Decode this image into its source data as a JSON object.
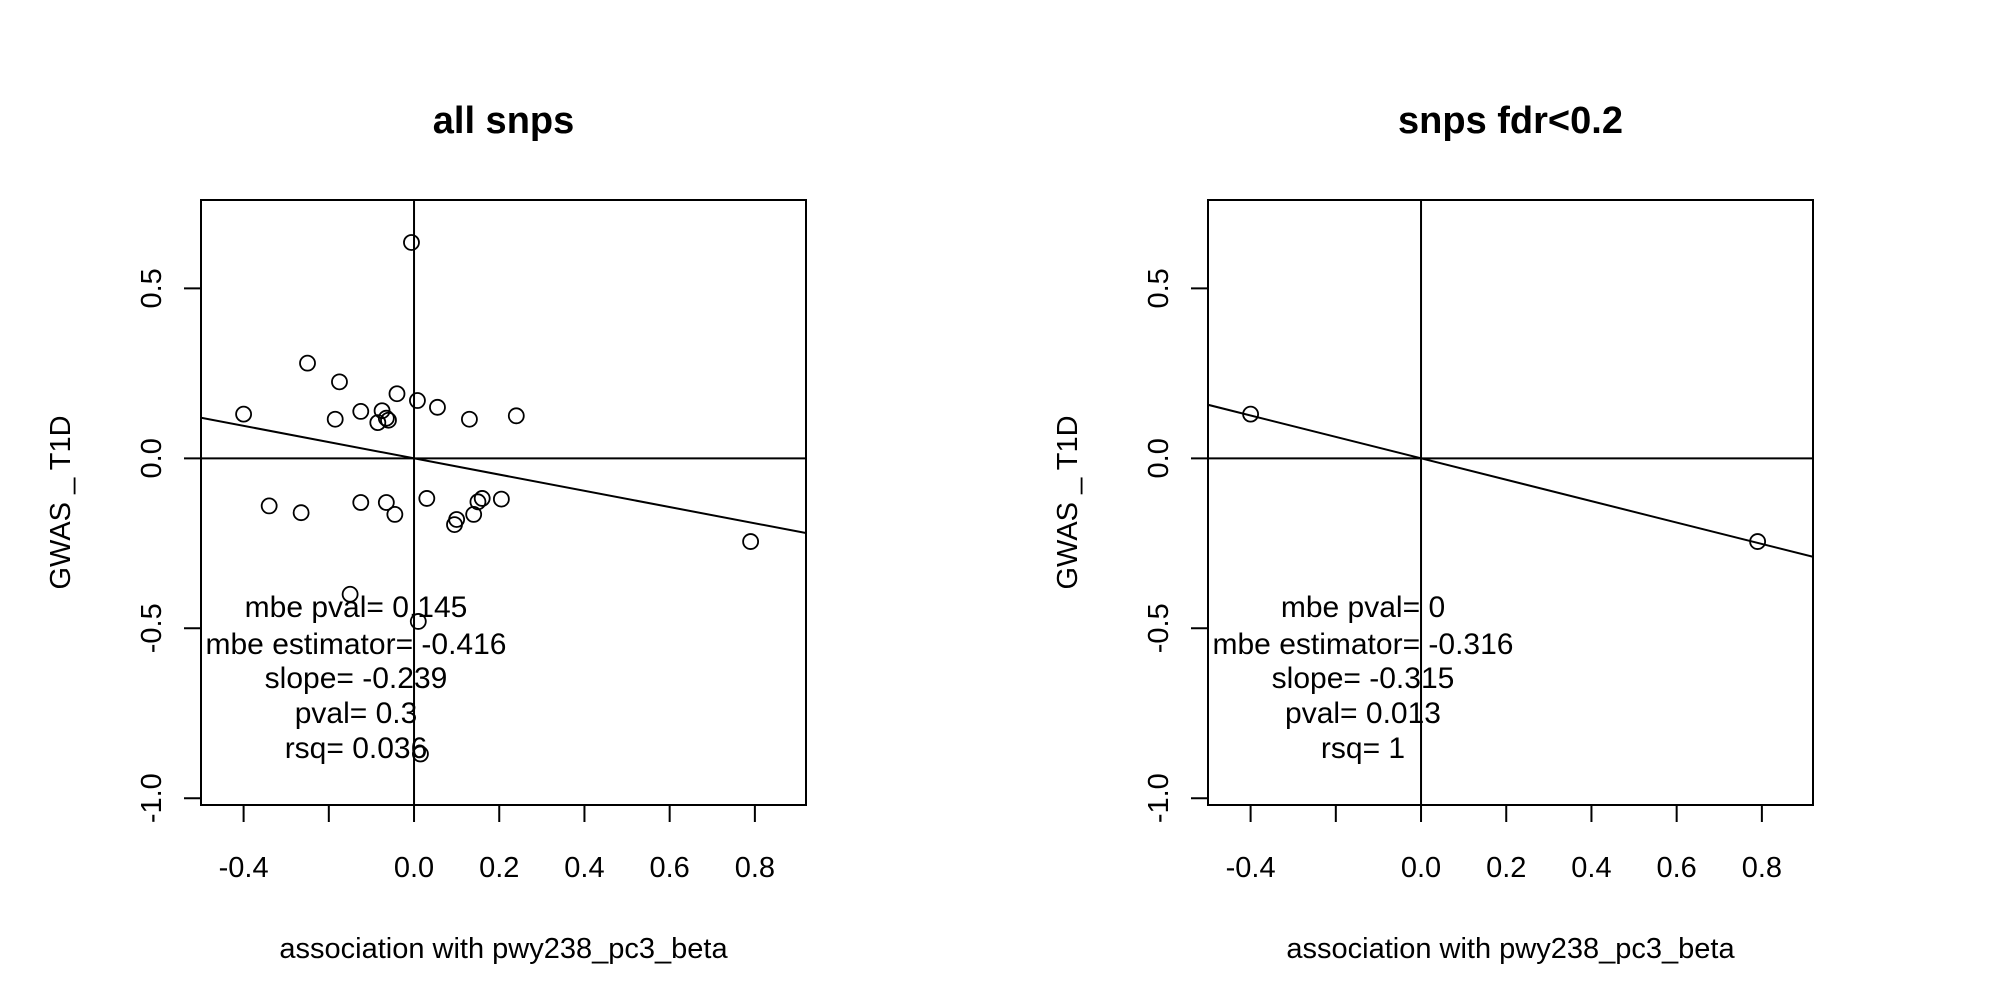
{
  "chart_data": [
    {
      "type": "scatter",
      "title": "all snps",
      "xlabel": "association with pwy238_pc3_beta",
      "ylabel": "GWAS _ T1D",
      "xlim": [
        -0.5,
        0.92
      ],
      "ylim": [
        -1.02,
        0.76
      ],
      "xticks": [
        -0.4,
        -0.2,
        0.0,
        0.2,
        0.4,
        0.6,
        0.8
      ],
      "xtick_labels": [
        "-0.4",
        "",
        "0.0",
        "0.2",
        "0.4",
        "0.6",
        "0.8"
      ],
      "yticks": [
        -1.0,
        -0.5,
        0.0,
        0.5
      ],
      "ytick_labels": [
        "-1.0",
        "-0.5",
        "0.0",
        "0.5"
      ],
      "grid": false,
      "reference_lines": {
        "x": 0,
        "y": 0
      },
      "fit_line": {
        "slope": -0.239,
        "intercept": 0
      },
      "points": [
        {
          "x": -0.006,
          "y": 0.635
        },
        {
          "x": -0.25,
          "y": 0.28
        },
        {
          "x": -0.175,
          "y": 0.225
        },
        {
          "x": -0.04,
          "y": 0.19
        },
        {
          "x": 0.008,
          "y": 0.17
        },
        {
          "x": 0.055,
          "y": 0.15
        },
        {
          "x": -0.4,
          "y": 0.13
        },
        {
          "x": 0.24,
          "y": 0.125
        },
        {
          "x": -0.185,
          "y": 0.115
        },
        {
          "x": 0.13,
          "y": 0.115
        },
        {
          "x": -0.125,
          "y": 0.138
        },
        {
          "x": -0.075,
          "y": 0.14
        },
        {
          "x": -0.06,
          "y": 0.112
        },
        {
          "x": -0.085,
          "y": 0.105
        },
        {
          "x": -0.065,
          "y": 0.118
        },
        {
          "x": 0.03,
          "y": -0.118
        },
        {
          "x": 0.205,
          "y": -0.12
        },
        {
          "x": 0.16,
          "y": -0.118
        },
        {
          "x": 0.15,
          "y": -0.128
        },
        {
          "x": -0.125,
          "y": -0.13
        },
        {
          "x": -0.065,
          "y": -0.13
        },
        {
          "x": -0.34,
          "y": -0.14
        },
        {
          "x": -0.265,
          "y": -0.16
        },
        {
          "x": -0.045,
          "y": -0.165
        },
        {
          "x": 0.14,
          "y": -0.165
        },
        {
          "x": 0.1,
          "y": -0.18
        },
        {
          "x": 0.095,
          "y": -0.195
        },
        {
          "x": 0.79,
          "y": -0.245
        },
        {
          "x": -0.15,
          "y": -0.4
        },
        {
          "x": 0.01,
          "y": -0.48
        },
        {
          "x": 0.015,
          "y": -0.87
        }
      ],
      "stats": [
        "mbe pval= 0.145",
        "mbe estimator= -0.416",
        "slope= -0.239",
        "pval= 0.3",
        "rsq= 0.036"
      ]
    },
    {
      "type": "scatter",
      "title": "snps fdr<0.2",
      "xlabel": "association with pwy238_pc3_beta",
      "ylabel": "GWAS _ T1D",
      "xlim": [
        -0.5,
        0.92
      ],
      "ylim": [
        -1.02,
        0.76
      ],
      "xticks": [
        -0.4,
        -0.2,
        0.0,
        0.2,
        0.4,
        0.6,
        0.8
      ],
      "xtick_labels": [
        "-0.4",
        "",
        "0.0",
        "0.2",
        "0.4",
        "0.6",
        "0.8"
      ],
      "yticks": [
        -1.0,
        -0.5,
        0.0,
        0.5
      ],
      "ytick_labels": [
        "-1.0",
        "-0.5",
        "0.0",
        "0.5"
      ],
      "grid": false,
      "reference_lines": {
        "x": 0,
        "y": 0
      },
      "fit_line": {
        "slope": -0.315,
        "intercept": 0
      },
      "points": [
        {
          "x": -0.4,
          "y": 0.13
        },
        {
          "x": 0.79,
          "y": -0.245
        }
      ],
      "stats": [
        "mbe pval= 0",
        "mbe estimator= -0.316",
        "slope= -0.315",
        "pval= 0.013",
        "rsq= 1"
      ]
    }
  ]
}
